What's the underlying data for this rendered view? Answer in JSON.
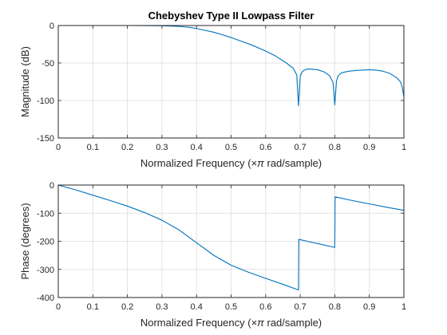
{
  "chart_data": [
    {
      "type": "line",
      "title": "Chebyshev Type II Lowpass Filter",
      "xlabel_parts": [
        "Normalized Frequency  (",
        "×",
        "π",
        " rad/sample)"
      ],
      "ylabel": "Magnitude (dB)",
      "xlim": [
        0,
        1
      ],
      "ylim": [
        -150,
        0
      ],
      "xticks": [
        0,
        0.1,
        0.2,
        0.3,
        0.4,
        0.5,
        0.6,
        0.7,
        0.8,
        0.9,
        1
      ],
      "xtick_labels": [
        "0",
        "0.1",
        "0.2",
        "0.3",
        "0.4",
        "0.5",
        "0.6",
        "0.7",
        "0.8",
        "0.9",
        "1"
      ],
      "yticks": [
        0,
        -50,
        -100,
        -150
      ],
      "ytick_labels": [
        "0",
        "-50",
        "-100",
        "-150"
      ],
      "grid": true,
      "series": [
        {
          "color": "#0072bd",
          "x": [
            0,
            0.05,
            0.1,
            0.15,
            0.2,
            0.25,
            0.3,
            0.33,
            0.36,
            0.38,
            0.4,
            0.42,
            0.45,
            0.48,
            0.5,
            0.53,
            0.56,
            0.6,
            0.63,
            0.66,
            0.68,
            0.69,
            0.695,
            0.7,
            0.705,
            0.71,
            0.72,
            0.73,
            0.75,
            0.77,
            0.785,
            0.795,
            0.8,
            0.805,
            0.81,
            0.82,
            0.84,
            0.86,
            0.88,
            0.9,
            0.92,
            0.94,
            0.96,
            0.98,
            0.99,
            0.995,
            1
          ],
          "y": [
            0,
            0,
            0,
            0,
            0,
            -0.1,
            -0.3,
            -0.7,
            -1.6,
            -2.5,
            -4,
            -6,
            -9,
            -13,
            -16,
            -21,
            -26,
            -34,
            -41,
            -50,
            -57,
            -66,
            -107,
            -68,
            -62,
            -60,
            -58,
            -58,
            -59,
            -62,
            -67,
            -76,
            -106,
            -74,
            -67,
            -63,
            -61,
            -60,
            -59.5,
            -59,
            -59.5,
            -61,
            -64,
            -70,
            -75,
            -82,
            -95
          ]
        }
      ]
    },
    {
      "type": "line",
      "title": "",
      "xlabel_parts": [
        "Normalized Frequency  (",
        "×",
        "π",
        " rad/sample)"
      ],
      "ylabel": "Phase (degrees)",
      "xlim": [
        0,
        1
      ],
      "ylim": [
        -400,
        0
      ],
      "xticks": [
        0,
        0.1,
        0.2,
        0.3,
        0.4,
        0.5,
        0.6,
        0.7,
        0.8,
        0.9,
        1
      ],
      "xtick_labels": [
        "0",
        "0.1",
        "0.2",
        "0.3",
        "0.4",
        "0.5",
        "0.6",
        "0.7",
        "0.8",
        "0.9",
        "1"
      ],
      "yticks": [
        0,
        -100,
        -200,
        -300,
        -400
      ],
      "ytick_labels": [
        "0",
        "-100",
        "-200",
        "-300",
        "-400"
      ],
      "grid": true,
      "series": [
        {
          "color": "#0072bd",
          "x": [
            0,
            0.05,
            0.1,
            0.15,
            0.2,
            0.25,
            0.3,
            0.35,
            0.4,
            0.45,
            0.5,
            0.55,
            0.6,
            0.65,
            0.695,
            0.696,
            0.72,
            0.75,
            0.8,
            0.801,
            0.85,
            0.9,
            0.95,
            1
          ],
          "y": [
            0,
            -17,
            -36,
            -55,
            -75,
            -98,
            -125,
            -160,
            -205,
            -250,
            -285,
            -310,
            -332,
            -353,
            -373,
            -193,
            -200,
            -208,
            -222,
            -42,
            -55,
            -67,
            -79,
            -90
          ]
        }
      ]
    }
  ]
}
